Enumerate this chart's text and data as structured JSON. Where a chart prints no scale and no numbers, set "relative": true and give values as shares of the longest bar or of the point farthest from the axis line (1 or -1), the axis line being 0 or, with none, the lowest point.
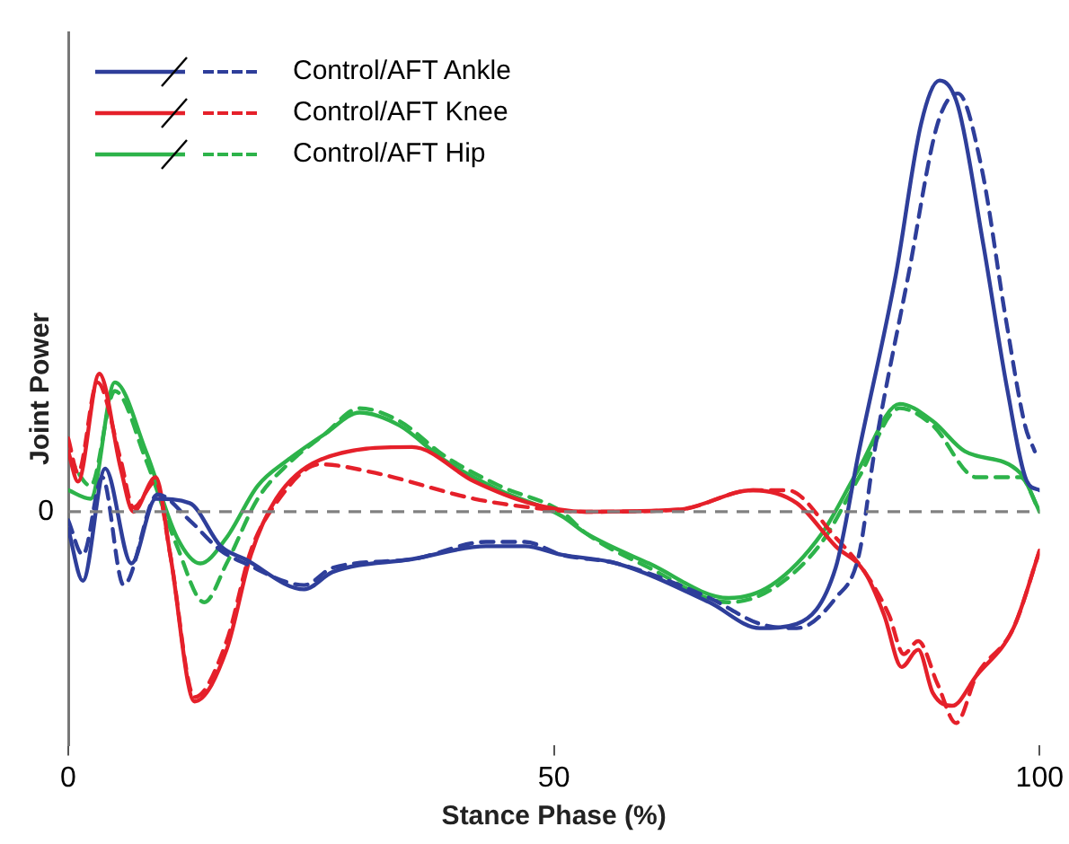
{
  "chart_data": {
    "type": "line",
    "xlabel": "Stance Phase (%)",
    "ylabel": "Joint Power",
    "relative": true,
    "xlim": [
      0,
      100
    ],
    "xticks": [
      0,
      50,
      100
    ],
    "grid": false,
    "legend": "top left",
    "tick_labels": "x",
    "ref_lines": [
      {
        "axis": "y",
        "value": 0,
        "label": "0",
        "color": "#808080",
        "line_style": "dashed"
      }
    ],
    "series": [
      {
        "name": "Control/AFT Ankle",
        "color": "#2e3e9a",
        "line_style": "solid",
        "x": [
          0,
          1.5,
          3.8,
          6.5,
          9,
          12.5,
          15.7,
          18.2,
          24.3,
          27.2,
          35.4,
          43,
          47,
          50.8,
          56.5,
          66,
          71.2,
          75,
          79,
          81.4,
          85.2,
          87.8,
          89.7,
          91.6,
          94.2,
          96.7,
          98.7,
          100
        ],
        "values": [
          -0.04,
          -0.16,
          0.1,
          -0.12,
          0.03,
          0.02,
          -0.08,
          -0.11,
          -0.18,
          -0.14,
          -0.11,
          -0.08,
          -0.08,
          -0.1,
          -0.12,
          -0.21,
          -0.27,
          -0.26,
          -0.13,
          0.14,
          0.55,
          0.9,
          1,
          0.94,
          0.62,
          0.28,
          0.07,
          0.05
        ]
      },
      {
        "color": "#2e3e9a",
        "line_style": "dashed",
        "x": [
          0,
          1.5,
          3.5,
          5.7,
          9.2,
          12.5,
          15.7,
          18.2,
          24.3,
          27.2,
          35.4,
          43,
          47,
          50.8,
          56.5,
          66,
          71.2,
          75,
          79,
          81.4,
          83,
          86.5,
          89.5,
          91.6,
          94,
          96.5,
          98.5,
          99.5
        ],
        "values": [
          -0.02,
          -0.1,
          0.08,
          -0.17,
          0.04,
          -0.02,
          -0.09,
          -0.12,
          -0.17,
          -0.13,
          -0.11,
          -0.07,
          -0.07,
          -0.1,
          -0.12,
          -0.2,
          -0.26,
          -0.27,
          -0.2,
          -0.1,
          0.14,
          0.55,
          0.9,
          0.97,
          0.8,
          0.45,
          0.2,
          0.14
        ]
      },
      {
        "name": "Control/AFT Knee",
        "color": "#e5202a",
        "line_style": "solid",
        "x": [
          0,
          1,
          3.2,
          5.4,
          6.7,
          9,
          10.5,
          13,
          16.3,
          18.8,
          21.4,
          25.9,
          35.4,
          41.8,
          47.5,
          53.3,
          62.9,
          70.5,
          75,
          79,
          82,
          84,
          85.8,
          87.5,
          89,
          91,
          93.5,
          97.3,
          100
        ],
        "values": [
          0.14,
          0.07,
          0.32,
          0.1,
          0,
          0.08,
          -0.1,
          -0.44,
          -0.32,
          -0.1,
          0.03,
          0.12,
          0.15,
          0.07,
          0.02,
          0,
          0.005,
          0.05,
          0.02,
          -0.08,
          -0.14,
          -0.24,
          -0.36,
          -0.32,
          -0.42,
          -0.45,
          -0.38,
          -0.27,
          -0.09
        ]
      },
      {
        "color": "#e5202a",
        "line_style": "dashed",
        "x": [
          0,
          1,
          3,
          5.4,
          6.7,
          9,
          10.5,
          13,
          16.3,
          18.8,
          21.4,
          25.9,
          31.6,
          41.8,
          47.5,
          53.3,
          62.9,
          70.5,
          74,
          79,
          82,
          84.5,
          86,
          87.5,
          89.5,
          91.4,
          93.5,
          97.3,
          100
        ],
        "values": [
          0.17,
          0.09,
          0.3,
          0.12,
          0.01,
          0.07,
          -0.1,
          -0.43,
          -0.3,
          -0.09,
          0.02,
          0.11,
          0.09,
          0.03,
          0.01,
          0,
          0.005,
          0.05,
          0.05,
          -0.06,
          -0.14,
          -0.24,
          -0.33,
          -0.3,
          -0.4,
          -0.49,
          -0.38,
          -0.27,
          -0.09
        ]
      },
      {
        "name": "Control/AFT Hip",
        "color": "#2db34a",
        "line_style": "solid",
        "x": [
          0,
          2.3,
          4.8,
          8,
          11.2,
          13.6,
          16.3,
          19.5,
          22.6,
          26.4,
          30,
          34.1,
          38.7,
          44.4,
          50.8,
          53.3,
          59.8,
          68,
          72.4,
          77.6,
          81.4,
          85.6,
          89,
          92.3,
          98,
          100
        ],
        "values": [
          0.05,
          0.03,
          0.3,
          0.14,
          -0.06,
          -0.12,
          -0.06,
          0.06,
          0.12,
          0.18,
          0.23,
          0.2,
          0.12,
          0.05,
          -0.01,
          -0.05,
          -0.12,
          -0.2,
          -0.17,
          -0.05,
          0.1,
          0.25,
          0.21,
          0.14,
          0.09,
          0
        ]
      },
      {
        "color": "#2db34a",
        "line_style": "dashed",
        "x": [
          0,
          2.3,
          4.8,
          8,
          11.2,
          14,
          16.3,
          19.5,
          22.6,
          26.4,
          30,
          34.1,
          38.7,
          44.4,
          50.8,
          53.3,
          59.8,
          68,
          72.4,
          77.6,
          81.4,
          85.6,
          89,
          93.5,
          98,
          100
        ],
        "values": [
          0.13,
          0.06,
          0.28,
          0.12,
          -0.08,
          -0.21,
          -0.12,
          0.03,
          0.11,
          0.18,
          0.24,
          0.21,
          0.13,
          0.06,
          0,
          -0.05,
          -0.13,
          -0.21,
          -0.18,
          -0.07,
          0.08,
          0.24,
          0.2,
          0.08,
          0.08,
          0
        ]
      }
    ]
  }
}
